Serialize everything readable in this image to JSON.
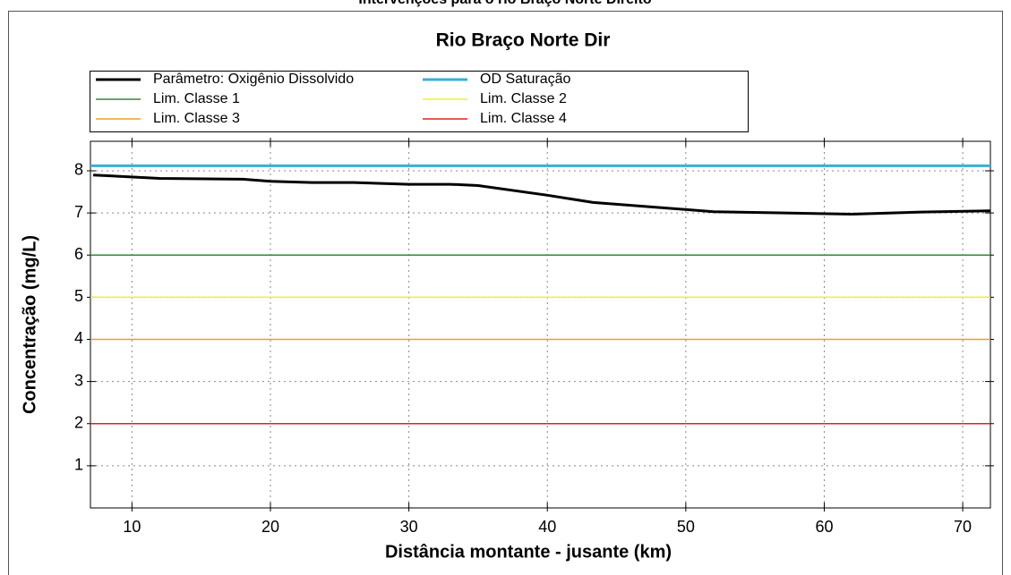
{
  "page_title": "Intervenções para o rio Braço Norte Direito",
  "chart_data": {
    "type": "line",
    "title": "Rio Braço Norte Dir",
    "xlabel": "Distância montante - jusante (km)",
    "ylabel": "Concentração (mg/L)",
    "xlim": [
      7,
      72
    ],
    "ylim": [
      0,
      8.7
    ],
    "xticks": [
      10,
      20,
      30,
      40,
      50,
      60,
      70
    ],
    "yticks": [
      1,
      2,
      3,
      4,
      5,
      6,
      7,
      8
    ],
    "grid": true,
    "legend": "top",
    "series": [
      {
        "name": "Parâmetro: Oxigênio Dissolvido",
        "color": "#000000",
        "x": [
          7.2,
          12,
          18,
          20,
          23,
          26,
          30,
          33,
          35,
          40,
          43.3,
          52,
          62,
          67,
          72
        ],
        "values": [
          7.9,
          7.82,
          7.8,
          7.75,
          7.72,
          7.72,
          7.68,
          7.68,
          7.65,
          7.42,
          7.25,
          7.03,
          6.97,
          7.02,
          7.05
        ]
      }
    ],
    "hlines": [
      {
        "name": "OD Saturação",
        "color": "#3aaed8",
        "value": 8.12
      },
      {
        "name": "Lim. Classe 1",
        "color": "#2e8b2e",
        "value": 6
      },
      {
        "name": "Lim. Classe 2",
        "color": "#f0f020",
        "value": 5
      },
      {
        "name": "Lim. Classe 3",
        "color": "#f0a020",
        "value": 4
      },
      {
        "name": "Lim. Classe 4",
        "color": "#e02020",
        "value": 2
      }
    ]
  }
}
